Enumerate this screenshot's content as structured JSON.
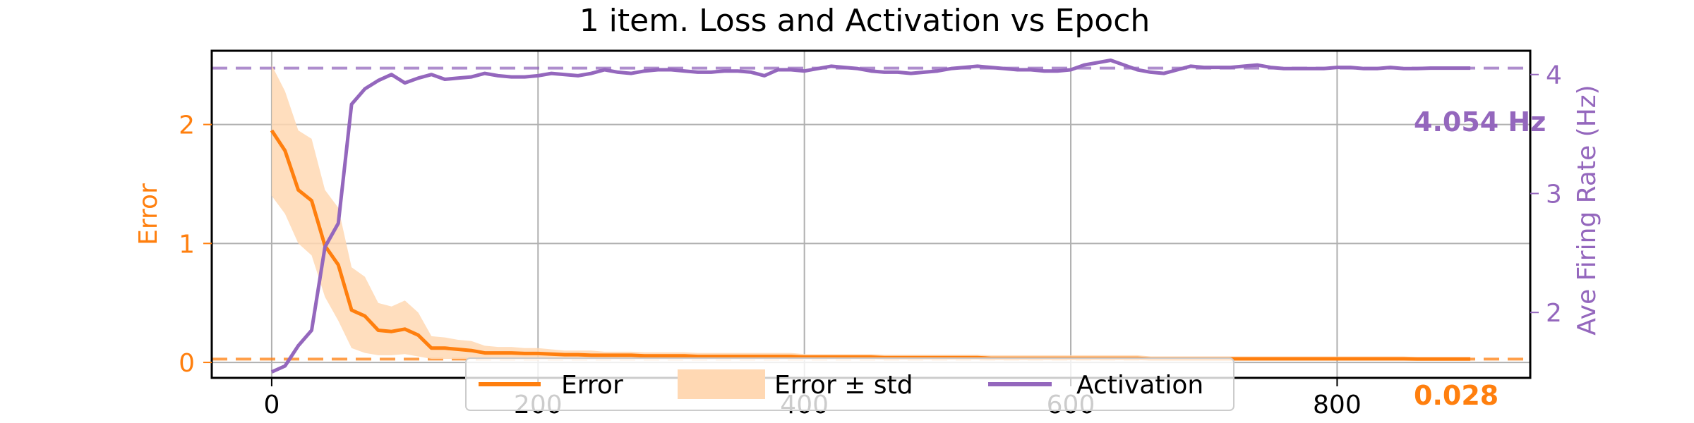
{
  "chart_data": {
    "type": "line",
    "title": "1 item. Loss and Activation vs Epoch",
    "xlabel": "",
    "ylabel_left": "Error",
    "ylabel_right": "Ave Firing Rate (Hz)",
    "xlim": [
      -45,
      945
    ],
    "ylim_left": [
      -0.13,
      2.62
    ],
    "ylim_right": [
      1.45,
      4.2
    ],
    "x_ticks": [
      0,
      200,
      400,
      600,
      800
    ],
    "y_ticks_left": [
      0,
      1,
      2
    ],
    "y_ticks_right": [
      2,
      3,
      4
    ],
    "grid": true,
    "legend": {
      "placement": "bottom-center",
      "entries": [
        "Error",
        "Error ± std",
        "Activation"
      ]
    },
    "colors": {
      "error": "#ff7f0e",
      "activation": "#9467bd",
      "std_fill": "#ffd8b3"
    },
    "annotations": {
      "activation_final": "4.054 Hz",
      "error_final": "0.028"
    },
    "reference_lines": {
      "error_final": 0.028,
      "activation_final": 4.054
    },
    "series": [
      {
        "name": "Error",
        "axis": "left",
        "x": [
          0,
          10,
          20,
          30,
          40,
          50,
          60,
          70,
          80,
          90,
          100,
          110,
          120,
          130,
          140,
          150,
          160,
          170,
          180,
          190,
          200,
          210,
          220,
          230,
          240,
          250,
          260,
          270,
          280,
          290,
          300,
          310,
          320,
          330,
          340,
          350,
          360,
          370,
          380,
          390,
          400,
          410,
          420,
          430,
          440,
          450,
          460,
          470,
          480,
          490,
          500,
          510,
          520,
          530,
          540,
          550,
          560,
          570,
          580,
          590,
          600,
          610,
          620,
          630,
          640,
          650,
          660,
          670,
          680,
          690,
          700,
          710,
          720,
          730,
          740,
          750,
          760,
          770,
          780,
          790,
          800,
          810,
          820,
          830,
          840,
          850,
          860,
          870,
          880,
          890,
          900
        ],
        "values": [
          1.95,
          1.78,
          1.45,
          1.36,
          0.98,
          0.82,
          0.44,
          0.39,
          0.27,
          0.26,
          0.28,
          0.23,
          0.12,
          0.12,
          0.11,
          0.1,
          0.08,
          0.08,
          0.08,
          0.075,
          0.075,
          0.07,
          0.065,
          0.065,
          0.06,
          0.06,
          0.06,
          0.06,
          0.055,
          0.055,
          0.055,
          0.055,
          0.05,
          0.05,
          0.05,
          0.05,
          0.05,
          0.05,
          0.05,
          0.05,
          0.045,
          0.045,
          0.045,
          0.045,
          0.045,
          0.045,
          0.04,
          0.04,
          0.04,
          0.04,
          0.04,
          0.04,
          0.04,
          0.04,
          0.035,
          0.035,
          0.035,
          0.035,
          0.035,
          0.035,
          0.035,
          0.035,
          0.035,
          0.035,
          0.035,
          0.035,
          0.03,
          0.03,
          0.03,
          0.03,
          0.03,
          0.03,
          0.03,
          0.03,
          0.03,
          0.03,
          0.03,
          0.03,
          0.03,
          0.03,
          0.03,
          0.03,
          0.03,
          0.03,
          0.03,
          0.03,
          0.028,
          0.028,
          0.028,
          0.028,
          0.028
        ],
        "std_lower": [
          1.4,
          1.25,
          1.0,
          0.9,
          0.55,
          0.35,
          0.12,
          0.08,
          0.06,
          0.06,
          0.07,
          0.05,
          0.03,
          0.03,
          0.03,
          0.03,
          0.02,
          0.02,
          0.02,
          0.02,
          0.02,
          0.02,
          0.02,
          0.02,
          0.02,
          0.02,
          0.02,
          0.02,
          0.02,
          0.02,
          0.02,
          0.02,
          0.02,
          0.02,
          0.02,
          0.02,
          0.02,
          0.02,
          0.02,
          0.02,
          0.02,
          0.02,
          0.02,
          0.02,
          0.02,
          0.02,
          0.02,
          0.02,
          0.02,
          0.02,
          0.02,
          0.02,
          0.02,
          0.02,
          0.02,
          0.02,
          0.02,
          0.02,
          0.02,
          0.02,
          0.02,
          0.02,
          0.02,
          0.02,
          0.02,
          0.02,
          0.02,
          0.02,
          0.02,
          0.02,
          0.02,
          0.02,
          0.02,
          0.02,
          0.02,
          0.02,
          0.02,
          0.02,
          0.02,
          0.02,
          0.02,
          0.02,
          0.02,
          0.02,
          0.02,
          0.02,
          0.02,
          0.02,
          0.02,
          0.02,
          0.02
        ],
        "std_upper": [
          2.5,
          2.28,
          1.95,
          1.88,
          1.45,
          1.3,
          0.8,
          0.72,
          0.5,
          0.47,
          0.52,
          0.42,
          0.22,
          0.21,
          0.19,
          0.18,
          0.14,
          0.13,
          0.13,
          0.12,
          0.12,
          0.11,
          0.1,
          0.1,
          0.1,
          0.09,
          0.09,
          0.09,
          0.085,
          0.085,
          0.085,
          0.085,
          0.08,
          0.08,
          0.08,
          0.08,
          0.08,
          0.08,
          0.08,
          0.08,
          0.07,
          0.07,
          0.07,
          0.07,
          0.07,
          0.07,
          0.065,
          0.065,
          0.065,
          0.065,
          0.065,
          0.065,
          0.065,
          0.065,
          0.06,
          0.06,
          0.06,
          0.06,
          0.06,
          0.06,
          0.06,
          0.06,
          0.06,
          0.06,
          0.06,
          0.06,
          0.05,
          0.05,
          0.05,
          0.05,
          0.05,
          0.05,
          0.05,
          0.05,
          0.05,
          0.05,
          0.05,
          0.05,
          0.05,
          0.05,
          0.05,
          0.05,
          0.05,
          0.05,
          0.05,
          0.05,
          0.045,
          0.045,
          0.045,
          0.045,
          0.045
        ]
      },
      {
        "name": "Activation",
        "axis": "right",
        "x": [
          0,
          10,
          20,
          30,
          40,
          50,
          60,
          70,
          80,
          90,
          100,
          110,
          120,
          130,
          140,
          150,
          160,
          170,
          180,
          190,
          200,
          210,
          220,
          230,
          240,
          250,
          260,
          270,
          280,
          290,
          300,
          310,
          320,
          330,
          340,
          350,
          360,
          370,
          380,
          390,
          400,
          410,
          420,
          430,
          440,
          450,
          460,
          470,
          480,
          490,
          500,
          510,
          520,
          530,
          540,
          550,
          560,
          570,
          580,
          590,
          600,
          610,
          620,
          630,
          640,
          650,
          660,
          670,
          680,
          690,
          700,
          710,
          720,
          730,
          740,
          750,
          760,
          770,
          780,
          790,
          800,
          810,
          820,
          830,
          840,
          850,
          860,
          870,
          880,
          890,
          900
        ],
        "values": [
          1.5,
          1.55,
          1.72,
          1.85,
          2.55,
          2.75,
          3.75,
          3.88,
          3.95,
          4.0,
          3.93,
          3.97,
          4.0,
          3.96,
          3.97,
          3.98,
          4.01,
          3.99,
          3.98,
          3.98,
          3.99,
          4.01,
          4.0,
          3.99,
          4.01,
          4.04,
          4.02,
          4.01,
          4.03,
          4.04,
          4.04,
          4.03,
          4.02,
          4.02,
          4.03,
          4.03,
          4.02,
          3.99,
          4.04,
          4.04,
          4.03,
          4.05,
          4.07,
          4.06,
          4.05,
          4.03,
          4.02,
          4.02,
          4.01,
          4.02,
          4.03,
          4.05,
          4.06,
          4.07,
          4.06,
          4.05,
          4.04,
          4.04,
          4.03,
          4.03,
          4.04,
          4.08,
          4.1,
          4.12,
          4.08,
          4.04,
          4.02,
          4.01,
          4.04,
          4.07,
          4.06,
          4.06,
          4.06,
          4.07,
          4.08,
          4.06,
          4.05,
          4.05,
          4.05,
          4.05,
          4.06,
          4.06,
          4.05,
          4.05,
          4.06,
          4.05,
          4.05,
          4.054,
          4.054,
          4.054,
          4.054
        ]
      }
    ]
  }
}
